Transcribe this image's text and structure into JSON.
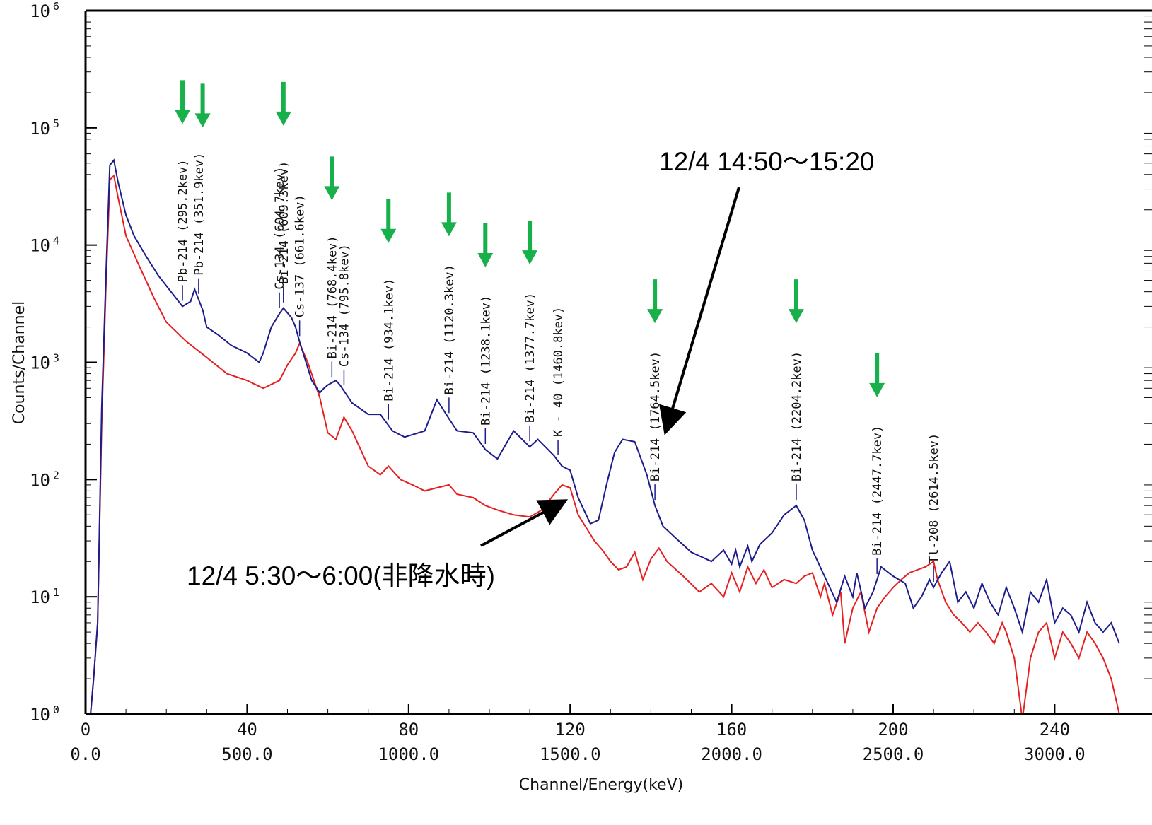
{
  "chart_data": {
    "type": "line",
    "title": "",
    "xlabel": "Channel/Energy(keV)",
    "ylabel": "Counts/Channel",
    "yscale": "log",
    "ylim": [
      1,
      1000000
    ],
    "xlim_channel": [
      0,
      256
    ],
    "x_ticks_channel": [
      0,
      40,
      80,
      120,
      160,
      200,
      240
    ],
    "x_ticks_energy": [
      "0.0",
      "500.0",
      "1000.0",
      "1500.0",
      "2000.0",
      "2500.0",
      "3000.0"
    ],
    "y_tick_labels": [
      {
        "base": "10",
        "exp": "0"
      },
      {
        "base": "10",
        "exp": "1"
      },
      {
        "base": "10",
        "exp": "2"
      },
      {
        "base": "10",
        "exp": "3"
      },
      {
        "base": "10",
        "exp": "4"
      },
      {
        "base": "10",
        "exp": "5"
      },
      {
        "base": "10",
        "exp": "6"
      }
    ],
    "series": [
      {
        "name": "12/4  14:50〜15:20",
        "color": "#1c1c8c",
        "x": [
          0,
          1,
          2,
          3,
          4,
          5,
          6,
          7,
          8,
          10,
          12,
          15,
          18,
          20,
          24,
          26,
          27,
          29,
          30,
          33,
          36,
          40,
          43,
          44,
          46,
          48,
          49,
          51,
          52,
          53,
          56,
          58,
          59,
          60,
          62,
          63,
          66,
          70,
          73,
          76,
          79,
          84,
          87,
          90,
          92,
          96,
          99,
          102,
          106,
          110,
          112,
          116,
          118,
          120,
          122,
          125,
          127,
          129,
          131,
          133,
          136,
          139,
          141,
          143,
          146,
          150,
          155,
          158,
          160,
          161,
          162,
          164,
          165,
          167,
          170,
          173,
          176,
          178,
          180,
          183,
          186,
          188,
          190,
          191,
          193,
          195,
          196,
          197,
          200,
          203,
          205,
          207,
          209,
          210,
          212,
          214,
          216,
          218,
          220,
          222,
          224,
          226,
          228,
          230,
          232,
          234,
          236,
          238,
          240,
          242,
          244,
          246,
          248,
          250,
          252,
          254,
          256
        ],
        "y": [
          0.8,
          0.8,
          2,
          6,
          400,
          5000,
          48000,
          53000,
          35000,
          18000,
          12000,
          8000,
          5500,
          4500,
          3000,
          3300,
          4200,
          2800,
          2000,
          1700,
          1400,
          1200,
          1000,
          1200,
          2000,
          2600,
          2900,
          2400,
          2000,
          1500,
          700,
          550,
          600,
          640,
          700,
          640,
          450,
          360,
          360,
          260,
          230,
          260,
          480,
          330,
          260,
          250,
          180,
          150,
          260,
          190,
          220,
          160,
          130,
          120,
          70,
          42,
          45,
          90,
          170,
          220,
          210,
          110,
          60,
          40,
          32,
          24,
          20,
          25,
          19,
          25,
          18,
          27,
          20,
          28,
          35,
          50,
          60,
          45,
          25,
          15,
          9,
          15,
          10,
          16,
          8,
          11,
          14,
          18,
          15,
          13,
          8,
          10,
          14,
          12,
          16,
          20,
          9,
          11,
          8,
          13,
          9,
          7,
          12,
          8,
          5,
          11,
          9,
          14,
          6,
          8,
          7,
          5,
          9,
          6,
          5,
          6,
          4
        ],
        "marker_x": [
          5,
          52,
          210
        ]
      },
      {
        "name": "12/4  5:30〜6:00(非降水時)",
        "color": "#e62020",
        "x": [
          0,
          1,
          2,
          3,
          4,
          5,
          6,
          7,
          8,
          10,
          13,
          17,
          20,
          25,
          30,
          35,
          40,
          44,
          48,
          50,
          52,
          53,
          55,
          58,
          60,
          62,
          64,
          66,
          70,
          73,
          75,
          78,
          81,
          84,
          87,
          90,
          92,
          96,
          99,
          102,
          106,
          110,
          113,
          116,
          118,
          120,
          122,
          126,
          128,
          130,
          132,
          134,
          136,
          138,
          140,
          142,
          144,
          148,
          152,
          155,
          158,
          160,
          162,
          164,
          166,
          168,
          170,
          173,
          176,
          178,
          180,
          182,
          183,
          185,
          187,
          188,
          190,
          192,
          194,
          196,
          198,
          200,
          202,
          204,
          206,
          208,
          210,
          211,
          213,
          215,
          217,
          219,
          221,
          223,
          225,
          227,
          228,
          230,
          232,
          234,
          236,
          238,
          240,
          242,
          244,
          246,
          248,
          250,
          252,
          254,
          256
        ],
        "y": [
          0.8,
          0.8,
          2,
          6,
          300,
          4000,
          36000,
          39000,
          26000,
          12000,
          7000,
          3500,
          2200,
          1500,
          1100,
          800,
          700,
          600,
          700,
          950,
          1200,
          1450,
          1000,
          500,
          250,
          220,
          340,
          260,
          130,
          110,
          130,
          100,
          90,
          80,
          85,
          90,
          75,
          70,
          60,
          55,
          50,
          48,
          55,
          75,
          90,
          85,
          50,
          30,
          25,
          20,
          17,
          18,
          24,
          14,
          21,
          26,
          20,
          15,
          11,
          13,
          10,
          16,
          11,
          18,
          13,
          17,
          12,
          14,
          13,
          15,
          16,
          10,
          13,
          7,
          11,
          4,
          8,
          11,
          5,
          8,
          10,
          12,
          14,
          16,
          17,
          18,
          20,
          14,
          9,
          7,
          6,
          5,
          6,
          5,
          4,
          6,
          5,
          3,
          0.9,
          3,
          5,
          6,
          3,
          5,
          4,
          3,
          5,
          4,
          3,
          2,
          1
        ]
      }
    ],
    "peak_labels": [
      {
        "label": "Pb-214 (295.2kev)",
        "channel": 24
      },
      {
        "label": "Pb-214 (351.9kev)",
        "channel": 28
      },
      {
        "label": "Cs-134 (604.7kev)",
        "channel": 48
      },
      {
        "label": "Bi-214 (609.3kev)",
        "channel": 49
      },
      {
        "label": "Cs-137 (661.6kev)",
        "channel": 53
      },
      {
        "label": "Bi-214 (768.4kev)",
        "channel": 61
      },
      {
        "label": "Cs-134   (795.8kev)",
        "channel": 64
      },
      {
        "label": "Bi-214 (934.1kev)",
        "channel": 75
      },
      {
        "label": "Bi-214 (1120.3kev)",
        "channel": 90
      },
      {
        "label": "Bi-214 (1238.1kev)",
        "channel": 99
      },
      {
        "label": "Bi-214 (1377.7kev)",
        "channel": 110
      },
      {
        "label": "K - 40 (1460.8kev)",
        "channel": 117
      },
      {
        "label": "Bi-214 (1764.5kev)",
        "channel": 141
      },
      {
        "label": "Bi-214 (2204.2kev)",
        "channel": 176
      },
      {
        "label": "Bi-214 (2447.7kev)",
        "channel": 196
      },
      {
        "label": "Tl-208    (2614.5kev)",
        "channel": 210
      }
    ],
    "green_arrow_channels": [
      24,
      29,
      49,
      61,
      75,
      90,
      99,
      110,
      141,
      176,
      196
    ],
    "annotations": [
      {
        "text": "12/4  14:50〜15:20",
        "target_channel": 141
      },
      {
        "text": "12/4  5:30〜6:00(非降水時)",
        "target_channel": 118
      }
    ],
    "grid": false,
    "legend": "none"
  }
}
